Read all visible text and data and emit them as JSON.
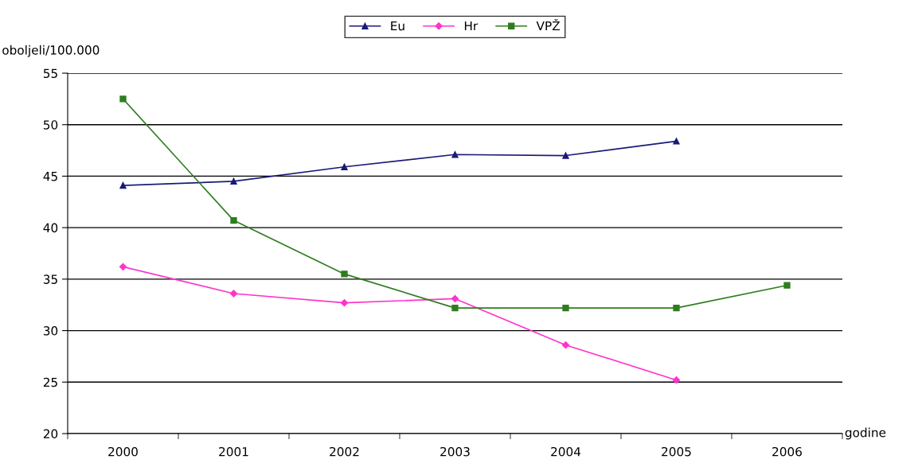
{
  "chart_data": {
    "type": "line",
    "xlabel": "godine",
    "ylabel": "oboljeli/100.000",
    "categories": [
      "2000",
      "2001",
      "2002",
      "2003",
      "2004",
      "2005",
      "2006"
    ],
    "series": [
      {
        "name": "Eu",
        "color": "#1a1a78",
        "marker": "triangle",
        "values": [
          44.1,
          44.5,
          45.9,
          47.1,
          47.0,
          48.4,
          null
        ]
      },
      {
        "name": "Hr",
        "color": "#ff33cc",
        "marker": "diamond",
        "values": [
          36.2,
          33.6,
          32.7,
          33.1,
          28.6,
          25.2,
          null
        ]
      },
      {
        "name": "VPŽ",
        "color": "#2e7d1f",
        "marker": "square",
        "values": [
          52.5,
          40.7,
          35.5,
          32.2,
          32.2,
          32.2,
          34.4
        ]
      }
    ],
    "ylim": [
      20,
      55
    ],
    "yticks": [
      20,
      25,
      30,
      35,
      40,
      45,
      50,
      55
    ],
    "grid": "y",
    "legend": "top"
  }
}
